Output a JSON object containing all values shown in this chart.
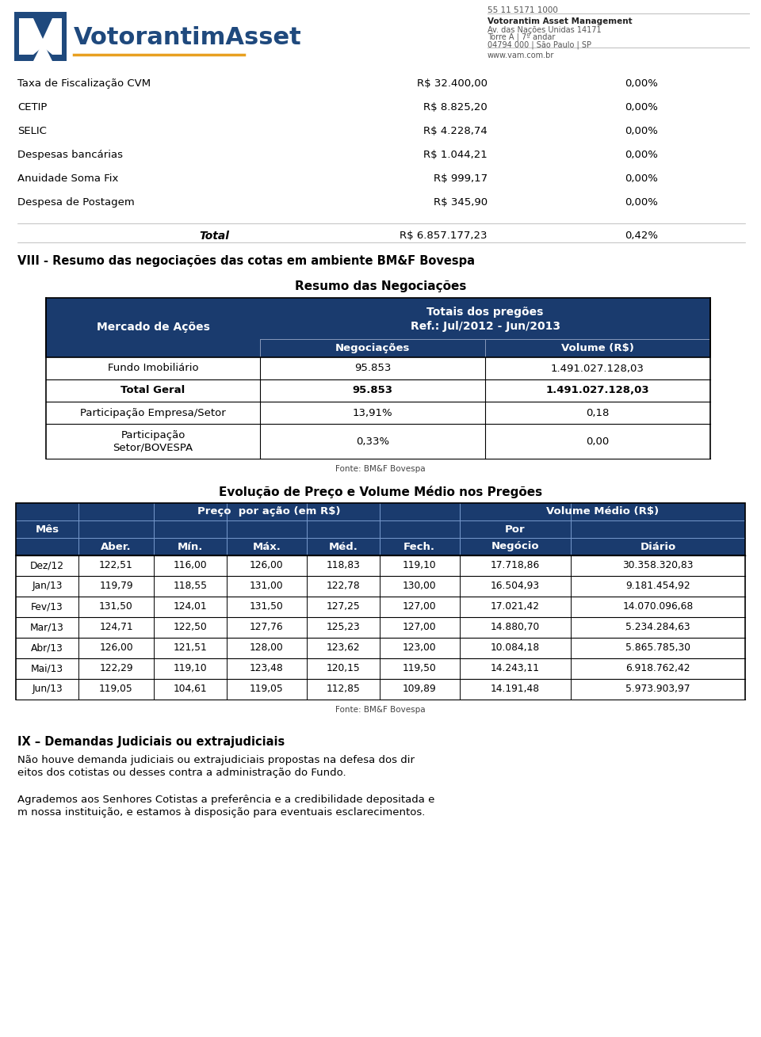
{
  "page_bg": "#ffffff",
  "header": {
    "phone": "55 11 5171 1000",
    "company_bold": "Votorantim Asset Management",
    "address1": "Av. das Nações Unidas 14171",
    "address2": "Torre A | 7º andar",
    "address3": "04794 000 | São Paulo | SP",
    "website": "www.vam.com.br"
  },
  "top_table": {
    "rows": [
      [
        "Taxa de Fiscalização CVM",
        "R$ 32.400,00",
        "0,00%"
      ],
      [
        "CETIP",
        "R$ 8.825,20",
        "0,00%"
      ],
      [
        "SELIC",
        "R$ 4.228,74",
        "0,00%"
      ],
      [
        "Despesas bancárias",
        "R$ 1.044,21",
        "0,00%"
      ],
      [
        "Anuidade Soma Fix",
        "R$ 999,17",
        "0,00%"
      ],
      [
        "Despesa de Postagem",
        "R$ 345,90",
        "0,00%"
      ]
    ],
    "total_label": "Total",
    "total_value": "R$ 6.857.177,23",
    "total_pct": "0,42%"
  },
  "section1_title": "VIII - Resumo das negociações das cotas em ambiente BM&F Bovespa",
  "resumo_title": "Resumo das Negociações",
  "resumo_table": {
    "data_rows": [
      [
        "Fundo Imobiliário",
        "95.853",
        "1.491.027.128,03"
      ],
      [
        "Total Geral",
        "95.853",
        "1.491.027.128,03"
      ],
      [
        "Participação Empresa/Setor",
        "13,91%",
        "0,18"
      ],
      [
        "Participação\nSetor/BOVESPA",
        "0,33%",
        "0,00"
      ]
    ],
    "total_row_index": 1,
    "fonte": "Fonte: BM&F Bovespa"
  },
  "evolucao_title": "Evolução de Preço e Volume Médio nos Pregões",
  "evolucao_table": {
    "header_row3": [
      "Aber.",
      "Mín.",
      "Máx.",
      "Méd.",
      "Fech.",
      "Negócio",
      "Diário"
    ],
    "data_rows": [
      [
        "Dez/12",
        "122,51",
        "116,00",
        "126,00",
        "118,83",
        "119,10",
        "17.718,86",
        "30.358.320,83"
      ],
      [
        "Jan/13",
        "119,79",
        "118,55",
        "131,00",
        "122,78",
        "130,00",
        "16.504,93",
        "9.181.454,92"
      ],
      [
        "Fev/13",
        "131,50",
        "124,01",
        "131,50",
        "127,25",
        "127,00",
        "17.021,42",
        "14.070.096,68"
      ],
      [
        "Mar/13",
        "124,71",
        "122,50",
        "127,76",
        "125,23",
        "127,00",
        "14.880,70",
        "5.234.284,63"
      ],
      [
        "Abr/13",
        "126,00",
        "121,51",
        "128,00",
        "123,62",
        "123,00",
        "10.084,18",
        "5.865.785,30"
      ],
      [
        "Mai/13",
        "122,29",
        "119,10",
        "123,48",
        "120,15",
        "119,50",
        "14.243,11",
        "6.918.762,42"
      ],
      [
        "Jun/13",
        "119,05",
        "104,61",
        "119,05",
        "112,85",
        "109,89",
        "14.191,48",
        "5.973.903,97"
      ]
    ],
    "fonte": "Fonte: BM&F Bovespa"
  },
  "section2_title": "IX – Demandas Judiciais ou extrajudiciais",
  "section2_para1": "Não houve demanda judiciais ou extrajudiciais propostas na defesa dos direitos dos cotistas ou desses contra a administração do Fundo.",
  "section2_para2": "Agrademos aos Senhores Cotistas a preferência e a credibilidade depositada em nossa instituição, e estamos à disposição para eventuais esclarecimentos.",
  "dark_blue": "#1a3b6e",
  "mid_blue": "#1F497D",
  "logo_yellow": "#e8a020",
  "logo_blue": "#1F497D"
}
